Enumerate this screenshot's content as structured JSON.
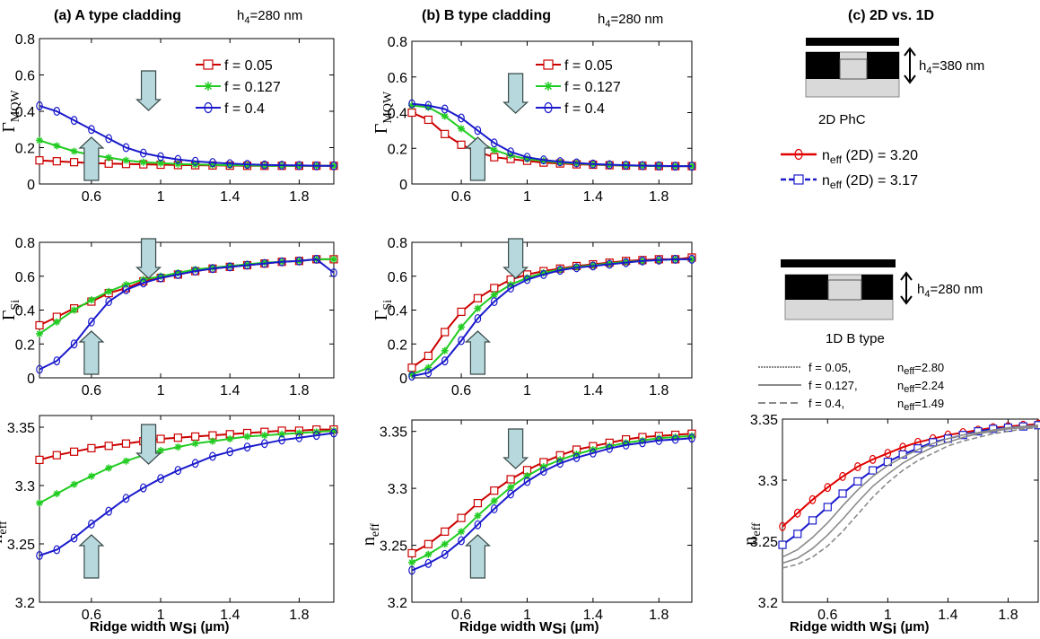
{
  "columns": [
    {
      "title": "(a) A type cladding",
      "h4": "h",
      "h4_sub": "4",
      "h4_value": "=280 nm"
    },
    {
      "title": "(b) B type cladding",
      "h4": "h",
      "h4_sub": "4",
      "h4_value": "=280 nm"
    },
    {
      "title": "(c) 2D vs. 1D"
    }
  ],
  "xlabel_main": "Ridge width   W",
  "xlabel_sub": "Si",
  "xlabel_unit": " (µm)",
  "ylabels": {
    "mqw": {
      "main": "Γ",
      "sub": "MQW"
    },
    "si": {
      "main": "Γ",
      "sub": "Si"
    },
    "neff": {
      "main": "n",
      "sub": "eff"
    }
  },
  "legend_ab": [
    {
      "label": "f = 0.05",
      "color": "#cc0000",
      "marker": "square"
    },
    {
      "label": "f = 0.127",
      "color": "#22cc22",
      "marker": "star"
    },
    {
      "label": "f = 0.4",
      "color": "#1a1acc",
      "marker": "circle"
    }
  ],
  "panel_c": {
    "top_schematic": {
      "h4": "h",
      "h4_sub": "4",
      "h4_value": "=380 nm"
    },
    "label_2d": "2D PhC",
    "legend_2d": [
      {
        "prefix": "n",
        "sub": "eff",
        "label": " (2D) = 3.20",
        "color": "#e00000",
        "marker": "circle"
      },
      {
        "prefix": "n",
        "sub": "eff",
        "label": " (2D) = 3.17",
        "color": "#1a1acc",
        "marker": "square"
      }
    ],
    "bottom_schematic": {
      "h4": "h",
      "h4_sub": "4",
      "h4_value": "=280 nm"
    },
    "label_1d": "1D  B type",
    "legend_1d": [
      {
        "f": "f = 0.05,",
        "n": "n",
        "sub": "eff",
        "val": "=2.80"
      },
      {
        "f": "f = 0.127,",
        "n": "n",
        "sub": "eff",
        "val": "=2.24"
      },
      {
        "f": "f = 0.4,",
        "n": "n",
        "sub": "eff",
        "val": "=1.49"
      }
    ]
  },
  "chart_data": [
    {
      "id": "a-mqw",
      "type": "line",
      "xlim": [
        0.3,
        2.0
      ],
      "ylim": [
        0,
        0.8
      ],
      "xticks": [
        0.6,
        1,
        1.4,
        1.8
      ],
      "xticklabels": [
        "0.6",
        "1",
        "1.4",
        "1.8"
      ],
      "yticks": [
        0,
        0.2,
        0.4,
        0.6,
        0.8
      ],
      "yticklabels": [
        "0",
        "0.2",
        "0.4",
        "0.6",
        "0.8"
      ],
      "x": [
        0.3,
        0.4,
        0.5,
        0.6,
        0.7,
        0.8,
        0.9,
        1.0,
        1.1,
        1.2,
        1.3,
        1.4,
        1.5,
        1.6,
        1.7,
        1.8,
        1.9,
        2.0
      ],
      "series": [
        {
          "legend": 0,
          "values": [
            0.13,
            0.125,
            0.12,
            0.115,
            0.112,
            0.11,
            0.108,
            0.106,
            0.104,
            0.103,
            0.102,
            0.101,
            0.1,
            0.1,
            0.1,
            0.1,
            0.1,
            0.1
          ]
        },
        {
          "legend": 1,
          "values": [
            0.24,
            0.21,
            0.18,
            0.16,
            0.145,
            0.13,
            0.12,
            0.115,
            0.11,
            0.107,
            0.105,
            0.103,
            0.102,
            0.1,
            0.1,
            0.1,
            0.1,
            0.1
          ]
        },
        {
          "legend": 2,
          "values": [
            0.43,
            0.4,
            0.35,
            0.3,
            0.25,
            0.2,
            0.17,
            0.15,
            0.135,
            0.125,
            0.118,
            0.112,
            0.108,
            0.105,
            0.103,
            0.102,
            0.1,
            0.1
          ]
        }
      ],
      "arrows": [
        {
          "x": 0.93,
          "dir": "down"
        },
        {
          "x": 0.6,
          "dir": "up"
        }
      ],
      "legend_box": true
    },
    {
      "id": "b-mqw",
      "type": "line",
      "xlim": [
        0.3,
        2.0
      ],
      "ylim": [
        0,
        0.8
      ],
      "xticks": [
        0.6,
        1,
        1.4,
        1.8
      ],
      "xticklabels": [
        "0.6",
        "1",
        "1.4",
        "1.8"
      ],
      "yticks": [
        0,
        0.2,
        0.4,
        0.6,
        0.8
      ],
      "yticklabels": [
        "0",
        "0.2",
        "0.4",
        "0.6",
        "0.8"
      ],
      "x": [
        0.3,
        0.4,
        0.5,
        0.6,
        0.7,
        0.8,
        0.9,
        1.0,
        1.1,
        1.2,
        1.3,
        1.4,
        1.5,
        1.6,
        1.7,
        1.8,
        1.9,
        2.0
      ],
      "series": [
        {
          "legend": 0,
          "values": [
            0.4,
            0.36,
            0.28,
            0.22,
            0.18,
            0.15,
            0.14,
            0.13,
            0.12,
            0.115,
            0.11,
            0.108,
            0.105,
            0.103,
            0.102,
            0.1,
            0.1,
            0.1
          ]
        },
        {
          "legend": 1,
          "values": [
            0.44,
            0.43,
            0.38,
            0.31,
            0.24,
            0.19,
            0.16,
            0.14,
            0.13,
            0.12,
            0.115,
            0.11,
            0.106,
            0.103,
            0.102,
            0.1,
            0.1,
            0.1
          ]
        },
        {
          "legend": 2,
          "values": [
            0.45,
            0.44,
            0.42,
            0.37,
            0.3,
            0.23,
            0.18,
            0.15,
            0.135,
            0.125,
            0.118,
            0.112,
            0.108,
            0.105,
            0.103,
            0.102,
            0.1,
            0.1
          ]
        }
      ],
      "arrows": [
        {
          "x": 0.93,
          "dir": "down"
        },
        {
          "x": 0.7,
          "dir": "up"
        }
      ],
      "legend_box": false
    },
    {
      "id": "c-top",
      "type": "none"
    },
    {
      "id": "a-si",
      "type": "line",
      "xlim": [
        0.3,
        2.0
      ],
      "ylim": [
        0,
        0.8
      ],
      "xticks": [
        0.6,
        1,
        1.4,
        1.8
      ],
      "xticklabels": [
        "0.6",
        "1",
        "1.4",
        "1.8"
      ],
      "yticks": [
        0,
        0.2,
        0.4,
        0.6,
        0.8
      ],
      "yticklabels": [
        "0",
        "0.2",
        "0.4",
        "0.6",
        "0.8"
      ],
      "x": [
        0.3,
        0.4,
        0.5,
        0.6,
        0.7,
        0.8,
        0.9,
        1.0,
        1.1,
        1.2,
        1.3,
        1.4,
        1.5,
        1.6,
        1.7,
        1.8,
        1.9,
        2.0
      ],
      "series": [
        {
          "legend": 0,
          "values": [
            0.31,
            0.36,
            0.41,
            0.45,
            0.5,
            0.53,
            0.57,
            0.59,
            0.61,
            0.63,
            0.645,
            0.655,
            0.665,
            0.675,
            0.685,
            0.69,
            0.7,
            0.7
          ]
        },
        {
          "legend": 1,
          "values": [
            0.26,
            0.33,
            0.4,
            0.46,
            0.51,
            0.55,
            0.58,
            0.6,
            0.62,
            0.64,
            0.65,
            0.66,
            0.67,
            0.68,
            0.685,
            0.69,
            0.7,
            0.7
          ]
        },
        {
          "legend": 2,
          "values": [
            0.05,
            0.1,
            0.2,
            0.33,
            0.45,
            0.52,
            0.56,
            0.59,
            0.61,
            0.63,
            0.645,
            0.655,
            0.665,
            0.675,
            0.685,
            0.69,
            0.7,
            0.62
          ]
        }
      ],
      "arrows": [
        {
          "x": 0.93,
          "dir": "down"
        },
        {
          "x": 0.6,
          "dir": "up"
        }
      ],
      "legend_box": false
    },
    {
      "id": "b-si",
      "type": "line",
      "xlim": [
        0.3,
        2.0
      ],
      "ylim": [
        0,
        0.8
      ],
      "xticks": [
        0.6,
        1,
        1.4,
        1.8
      ],
      "xticklabels": [
        "0.6",
        "1",
        "1.4",
        "1.8"
      ],
      "yticks": [
        0,
        0.2,
        0.4,
        0.6,
        0.8
      ],
      "yticklabels": [
        "0",
        "0.2",
        "0.4",
        "0.6",
        "0.8"
      ],
      "x": [
        0.3,
        0.4,
        0.5,
        0.6,
        0.7,
        0.8,
        0.9,
        1.0,
        1.1,
        1.2,
        1.3,
        1.4,
        1.5,
        1.6,
        1.7,
        1.8,
        1.9,
        2.0
      ],
      "series": [
        {
          "legend": 0,
          "values": [
            0.06,
            0.13,
            0.27,
            0.39,
            0.47,
            0.53,
            0.58,
            0.61,
            0.63,
            0.645,
            0.66,
            0.67,
            0.68,
            0.69,
            0.695,
            0.7,
            0.7,
            0.71
          ]
        },
        {
          "legend": 1,
          "values": [
            0.02,
            0.06,
            0.16,
            0.3,
            0.41,
            0.49,
            0.55,
            0.59,
            0.62,
            0.64,
            0.655,
            0.665,
            0.675,
            0.685,
            0.69,
            0.695,
            0.7,
            0.7
          ]
        },
        {
          "legend": 2,
          "values": [
            0.01,
            0.03,
            0.1,
            0.22,
            0.35,
            0.45,
            0.53,
            0.58,
            0.61,
            0.635,
            0.65,
            0.66,
            0.67,
            0.68,
            0.69,
            0.695,
            0.7,
            0.7
          ]
        }
      ],
      "arrows": [
        {
          "x": 0.93,
          "dir": "down"
        },
        {
          "x": 0.7,
          "dir": "up"
        }
      ],
      "legend_box": false
    },
    {
      "id": "c-mid",
      "type": "none"
    },
    {
      "id": "a-neff",
      "type": "line",
      "xlim": [
        0.3,
        2.0
      ],
      "ylim": [
        3.2,
        3.36
      ],
      "xticks": [
        0.6,
        1,
        1.4,
        1.8
      ],
      "xticklabels": [
        "0.6",
        "1",
        "1.4",
        "1.8"
      ],
      "yticks": [
        3.2,
        3.25,
        3.3,
        3.35
      ],
      "yticklabels": [
        "3.2",
        "3.25",
        "3.3",
        "3.35"
      ],
      "x": [
        0.3,
        0.4,
        0.5,
        0.6,
        0.7,
        0.8,
        0.9,
        1.0,
        1.1,
        1.2,
        1.3,
        1.4,
        1.5,
        1.6,
        1.7,
        1.8,
        1.9,
        2.0
      ],
      "series": [
        {
          "legend": 0,
          "values": [
            3.322,
            3.326,
            3.329,
            3.332,
            3.334,
            3.336,
            3.338,
            3.34,
            3.341,
            3.342,
            3.343,
            3.344,
            3.345,
            3.346,
            3.347,
            3.347,
            3.348,
            3.348
          ]
        },
        {
          "legend": 1,
          "values": [
            3.285,
            3.293,
            3.301,
            3.308,
            3.315,
            3.321,
            3.326,
            3.33,
            3.333,
            3.336,
            3.338,
            3.34,
            3.342,
            3.343,
            3.344,
            3.345,
            3.346,
            3.347
          ]
        },
        {
          "legend": 2,
          "values": [
            3.24,
            3.245,
            3.255,
            3.267,
            3.278,
            3.289,
            3.298,
            3.306,
            3.313,
            3.319,
            3.325,
            3.329,
            3.333,
            3.336,
            3.339,
            3.341,
            3.343,
            3.345
          ]
        }
      ],
      "arrows": [
        {
          "x": 0.93,
          "dir": "down"
        },
        {
          "x": 0.6,
          "dir": "up"
        }
      ],
      "legend_box": false
    },
    {
      "id": "b-neff",
      "type": "line",
      "xlim": [
        0.3,
        2.0
      ],
      "ylim": [
        3.2,
        3.36
      ],
      "xticks": [
        0.6,
        1,
        1.4,
        1.8
      ],
      "xticklabels": [
        "0.6",
        "1",
        "1.4",
        "1.8"
      ],
      "yticks": [
        3.2,
        3.25,
        3.3,
        3.35
      ],
      "yticklabels": [
        "3.2",
        "3.25",
        "3.3",
        "3.35"
      ],
      "x": [
        0.3,
        0.4,
        0.5,
        0.6,
        0.7,
        0.8,
        0.9,
        1.0,
        1.1,
        1.2,
        1.3,
        1.4,
        1.5,
        1.6,
        1.7,
        1.8,
        1.9,
        2.0
      ],
      "series": [
        {
          "legend": 0,
          "values": [
            3.243,
            3.251,
            3.262,
            3.274,
            3.287,
            3.298,
            3.308,
            3.316,
            3.323,
            3.329,
            3.334,
            3.337,
            3.34,
            3.343,
            3.345,
            3.346,
            3.347,
            3.348
          ]
        },
        {
          "legend": 1,
          "values": [
            3.235,
            3.242,
            3.251,
            3.262,
            3.276,
            3.289,
            3.301,
            3.311,
            3.319,
            3.325,
            3.33,
            3.334,
            3.337,
            3.34,
            3.342,
            3.344,
            3.345,
            3.346
          ]
        },
        {
          "legend": 2,
          "values": [
            3.228,
            3.234,
            3.242,
            3.254,
            3.268,
            3.282,
            3.295,
            3.306,
            3.315,
            3.322,
            3.327,
            3.331,
            3.335,
            3.338,
            3.34,
            3.342,
            3.343,
            3.344
          ]
        }
      ],
      "arrows": [
        {
          "x": 0.93,
          "dir": "down"
        },
        {
          "x": 0.7,
          "dir": "up"
        }
      ],
      "legend_box": false
    },
    {
      "id": "c-neff",
      "type": "line",
      "xlim": [
        0.3,
        2.0
      ],
      "ylim": [
        3.2,
        3.35
      ],
      "xticks": [
        0.6,
        1,
        1.4,
        1.8
      ],
      "xticklabels": [
        "0.6",
        "1",
        "1.4",
        "1.8"
      ],
      "yticks": [
        3.2,
        3.25,
        3.3,
        3.35
      ],
      "yticklabels": [
        "3.2",
        "3.25",
        "3.3",
        "3.35"
      ],
      "x": [
        0.3,
        0.4,
        0.5,
        0.6,
        0.7,
        0.8,
        0.9,
        1.0,
        1.1,
        1.2,
        1.3,
        1.4,
        1.5,
        1.6,
        1.7,
        1.8,
        1.9,
        2.0
      ],
      "series": [
        {
          "legend2d": 0,
          "color": "#e00000",
          "marker": "circle",
          "values": [
            3.262,
            3.273,
            3.284,
            3.294,
            3.303,
            3.311,
            3.317,
            3.322,
            3.327,
            3.331,
            3.334,
            3.337,
            3.339,
            3.341,
            3.343,
            3.344,
            3.345,
            3.346
          ]
        },
        {
          "legend2d": 1,
          "color": "#1a1acc",
          "marker": "square",
          "values": [
            3.247,
            3.256,
            3.267,
            3.278,
            3.289,
            3.299,
            3.308,
            3.315,
            3.321,
            3.326,
            3.331,
            3.334,
            3.337,
            3.34,
            3.342,
            3.343,
            3.344,
            3.345
          ]
        },
        {
          "legend1d": 0,
          "color": "#8a8a8a",
          "dash": "",
          "values": [
            3.237,
            3.243,
            3.253,
            3.265,
            3.279,
            3.292,
            3.303,
            3.312,
            3.319,
            3.325,
            3.33,
            3.334,
            3.337,
            3.339,
            3.341,
            3.343,
            3.344,
            3.345
          ]
        },
        {
          "legend1d": 1,
          "color": "#8a8a8a",
          "dash": "",
          "values": [
            3.232,
            3.236,
            3.244,
            3.255,
            3.268,
            3.282,
            3.295,
            3.305,
            3.314,
            3.321,
            3.327,
            3.331,
            3.335,
            3.338,
            3.34,
            3.342,
            3.343,
            3.344
          ]
        },
        {
          "legend1d": 2,
          "color": "#8a8a8a",
          "dash": "6,3",
          "values": [
            3.228,
            3.231,
            3.237,
            3.246,
            3.258,
            3.272,
            3.286,
            3.298,
            3.308,
            3.316,
            3.322,
            3.328,
            3.332,
            3.335,
            3.338,
            3.34,
            3.342,
            3.343
          ]
        }
      ],
      "arrows": [],
      "legend_box": false
    }
  ]
}
